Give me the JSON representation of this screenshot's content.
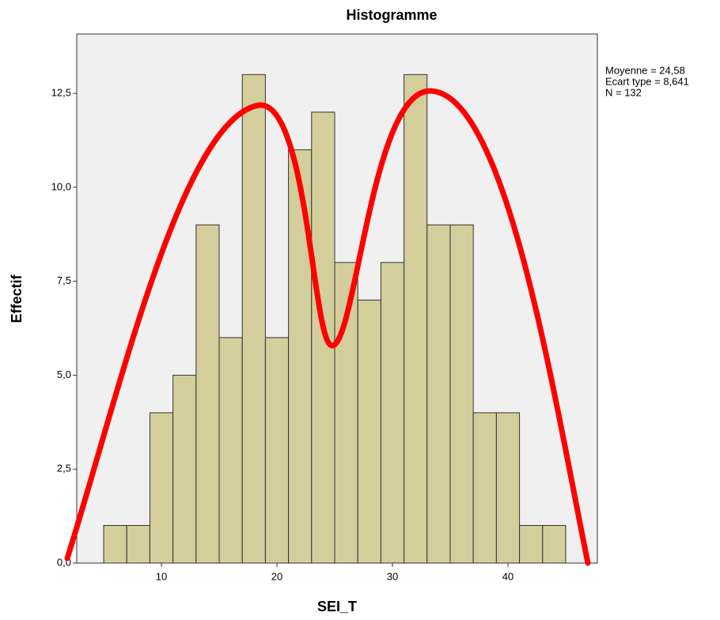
{
  "chart_data": {
    "type": "histogram",
    "title": "Histogramme",
    "x_label": "SEI_T",
    "y_label": "Effectif",
    "bins": [
      5,
      7,
      9,
      11,
      13,
      15,
      17,
      19,
      21,
      23,
      25,
      27,
      29,
      31,
      33,
      35,
      37,
      39,
      41,
      43,
      45
    ],
    "values": [
      1,
      1,
      4,
      5,
      9,
      6,
      13,
      6,
      11,
      12,
      8,
      7,
      8,
      13,
      9,
      9,
      4,
      4,
      1,
      1
    ],
    "color": "#d3ce9b",
    "xlim": [
      2.67,
      47.74
    ],
    "xticks": [
      10,
      20,
      30,
      40
    ],
    "ylim": [
      0,
      14.08
    ],
    "yticks": [
      {
        "value": 0,
        "label": "0,0"
      },
      {
        "value": 2.5,
        "label": "2,5"
      },
      {
        "value": 5,
        "label": "5,0"
      },
      {
        "value": 7.5,
        "label": "7,5"
      },
      {
        "value": 10,
        "label": "10,0"
      },
      {
        "value": 12.5,
        "label": "12,5"
      }
    ],
    "annotations": [
      "Moyenne = 24,58",
      "Ecart type = 8,641",
      "N = 132"
    ],
    "grid": false
  }
}
